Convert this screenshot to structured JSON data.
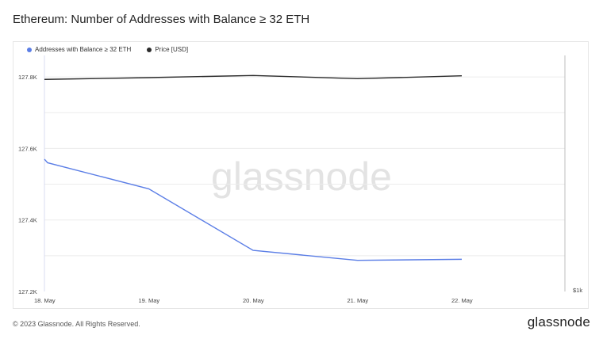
{
  "title": "Ethereum: Number of Addresses with Balance ≥ 32 ETH",
  "watermark": "glassnode",
  "footer": {
    "copyright": "© 2023 Glassnode. All Rights Reserved.",
    "brand": "glassnode"
  },
  "colors": {
    "addresses": "#5b7ee6",
    "price": "#2b2b2b",
    "grid": "#ececec"
  },
  "chart_data": {
    "type": "line",
    "x": [
      "18. May",
      "19. May",
      "20. May",
      "21. May",
      "22. May"
    ],
    "xticks": [
      "18. May",
      "19. May",
      "20. May",
      "21. May",
      "22. May"
    ],
    "y_ticks": [
      "127.2K",
      "127.4K",
      "127.6K",
      "127.8K"
    ],
    "y_right_ticks": [
      "$1k"
    ],
    "ylim": [
      127200,
      127860
    ],
    "series": [
      {
        "name": "Addresses with Balance ≥ 32 ETH",
        "axis": "left",
        "color": "#5b7ee6",
        "x": [
          0,
          0.03,
          1,
          2,
          3,
          4
        ],
        "values": [
          127570,
          127560,
          127487,
          127315,
          127287,
          127290
        ]
      },
      {
        "name": "Price [USD]",
        "axis": "right",
        "color": "#2b2b2b",
        "x": [
          0,
          1,
          2,
          3,
          4
        ],
        "values_left_scale": [
          127793,
          127798,
          127804,
          127795,
          127803
        ]
      }
    ],
    "legend": "top-left",
    "grid": true
  }
}
